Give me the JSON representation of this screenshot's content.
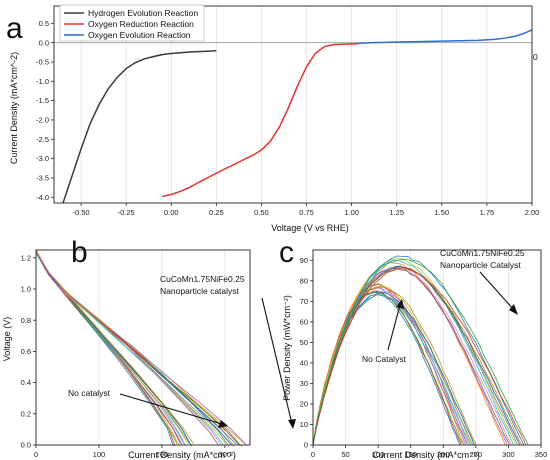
{
  "figure": {
    "panels": [
      {
        "letter": "a"
      },
      {
        "letter": "b"
      },
      {
        "letter": "c"
      }
    ]
  },
  "chart_data": [
    {
      "id": "a",
      "type": "line",
      "xlabel": "Voltage (V vs RHE)",
      "ylabel": "Current Density (mA*cm^-2)",
      "xlim": [
        -0.65,
        2.0
      ],
      "ylim": [
        -4.15,
        0.95
      ],
      "xticks": [
        -0.5,
        -0.25,
        0.0,
        0.25,
        0.5,
        0.75,
        1.0,
        1.25,
        1.5,
        1.75,
        2.0
      ],
      "xtick_labels": [
        "-0.50",
        "-0.25",
        "0.00",
        "0.25",
        "0.50",
        "0.75",
        "1.00",
        "1.25",
        "1.50",
        "1.75",
        "2.00"
      ],
      "yticks": [
        0.5,
        0.0,
        -0.5,
        -1.0,
        -1.5,
        -2.0,
        -2.5,
        -3.0,
        -3.5,
        -4.0
      ],
      "ytick_labels": [
        "0.5",
        "0.0",
        "-0.5",
        "-1.0",
        "-1.5",
        "-2.0",
        "-2.5",
        "-3.0",
        "-3.5",
        "-4.0"
      ],
      "grid": "vertical",
      "legend": "top-left",
      "annotation": "0",
      "series": [
        {
          "name": "Hydrogen Evolution Reaction",
          "color": "#3a3a3a",
          "x": [
            -0.6,
            -0.55,
            -0.5,
            -0.45,
            -0.4,
            -0.35,
            -0.3,
            -0.25,
            -0.2,
            -0.15,
            -0.1,
            -0.05,
            0.0,
            0.05,
            0.1,
            0.15,
            0.2,
            0.25
          ],
          "y": [
            -4.15,
            -3.45,
            -2.75,
            -2.1,
            -1.6,
            -1.2,
            -0.9,
            -0.67,
            -0.52,
            -0.42,
            -0.36,
            -0.31,
            -0.28,
            -0.26,
            -0.24,
            -0.23,
            -0.22,
            -0.21
          ]
        },
        {
          "name": "Oxygen Reduction Reaction",
          "color": "#e8302a",
          "x": [
            -0.05,
            0.0,
            0.05,
            0.1,
            0.15,
            0.2,
            0.25,
            0.3,
            0.35,
            0.4,
            0.45,
            0.5,
            0.55,
            0.6,
            0.65,
            0.7,
            0.75,
            0.8,
            0.85,
            0.9,
            0.95,
            1.0,
            1.03
          ],
          "y": [
            -3.98,
            -3.93,
            -3.85,
            -3.75,
            -3.62,
            -3.5,
            -3.38,
            -3.26,
            -3.15,
            -3.03,
            -2.92,
            -2.78,
            -2.55,
            -2.18,
            -1.68,
            -1.12,
            -0.62,
            -0.27,
            -0.1,
            -0.05,
            -0.04,
            -0.03,
            -0.03
          ]
        },
        {
          "name": "Oxygen Evolution Reaction",
          "color": "#2f6ed0",
          "x": [
            1.03,
            1.1,
            1.2,
            1.3,
            1.4,
            1.5,
            1.6,
            1.7,
            1.8,
            1.85,
            1.9,
            1.95,
            2.0
          ],
          "y": [
            -0.02,
            0.0,
            0.01,
            0.02,
            0.03,
            0.04,
            0.05,
            0.06,
            0.09,
            0.12,
            0.16,
            0.23,
            0.33
          ]
        }
      ]
    },
    {
      "id": "b",
      "type": "line",
      "xlabel": "Current Density (mA*cm⁻²)",
      "ylabel": "Voltage (V)",
      "xlim": [
        0,
        340
      ],
      "ylim": [
        0.0,
        1.25
      ],
      "xticks": [
        0,
        100,
        200,
        300
      ],
      "xtick_labels": [
        "0",
        "100",
        "200",
        "300"
      ],
      "yticks": [
        0.0,
        0.2,
        0.4,
        0.6,
        0.8,
        1.0,
        1.2
      ],
      "ytick_labels": [
        "0.0",
        "0.2",
        "0.4",
        "0.6",
        "0.8",
        "1.0",
        "1.2"
      ],
      "grid": "vertical",
      "annotations": [
        {
          "text": "CuCoMn1.75NiFe0.25",
          "text2": "Nanoparticle catalyst"
        },
        {
          "text": "No catalyst"
        }
      ],
      "series_groups": [
        {
          "label": "No catalyst",
          "count": 12,
          "x_end_range": [
            218,
            250
          ],
          "x": [
            0,
            20,
            50,
            100,
            150,
            200,
            230,
            245
          ],
          "y": [
            1.24,
            1.1,
            0.96,
            0.73,
            0.5,
            0.26,
            0.1,
            0.0
          ]
        },
        {
          "label": "CuCoMn1.75NiFe0.25 Nanoparticle catalyst",
          "count": 12,
          "x_end_range": [
            290,
            335
          ],
          "x": [
            0,
            20,
            50,
            100,
            150,
            200,
            250,
            300,
            320
          ],
          "y": [
            1.24,
            1.1,
            0.97,
            0.8,
            0.63,
            0.45,
            0.27,
            0.09,
            0.0
          ]
        }
      ]
    },
    {
      "id": "c",
      "type": "line",
      "xlabel": "Current Density (mA*cm⁻²)",
      "ylabel": "Power Density (mW*cm⁻²)",
      "xlim": [
        0,
        350
      ],
      "ylim": [
        0,
        95
      ],
      "xticks": [
        0,
        50,
        100,
        150,
        200,
        250,
        300,
        350
      ],
      "xtick_labels": [
        "0",
        "50",
        "100",
        "150",
        "200",
        "250",
        "300",
        "350"
      ],
      "yticks": [
        0,
        10,
        20,
        30,
        40,
        50,
        60,
        70,
        80,
        90
      ],
      "ytick_labels": [
        "0",
        "10",
        "20",
        "30",
        "40",
        "50",
        "60",
        "70",
        "80",
        "90"
      ],
      "grid": "vertical",
      "annotations": [
        {
          "text": "CuCoMn1.75NiFe0.25",
          "text2": "Nanoparticle Catalyst"
        },
        {
          "text": "No Catalyst"
        }
      ],
      "series_groups": [
        {
          "label": "No Catalyst",
          "count": 12,
          "peak_x": 120,
          "peak_y": 74,
          "x_end_range": [
            225,
            250
          ]
        },
        {
          "label": "CuCoMn1.75NiFe0.25 Nanoparticle Catalyst",
          "count": 12,
          "peak_x": 150,
          "peak_y": 87,
          "x_end_range": [
            295,
            330
          ]
        }
      ]
    }
  ],
  "colors": {
    "palette": [
      "#1f77b4",
      "#d62728",
      "#2ca02c",
      "#ff7f0e",
      "#9467bd",
      "#8c564b",
      "#e377c2",
      "#17becf",
      "#bcbd22",
      "#7f7f7f",
      "#0055a4",
      "#b8860b"
    ]
  }
}
